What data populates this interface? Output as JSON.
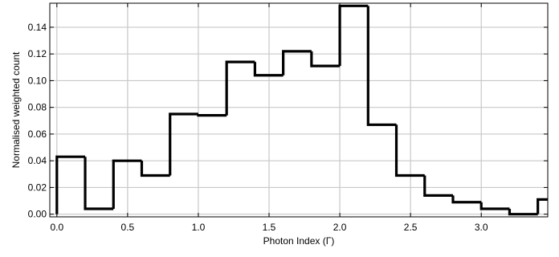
{
  "chart_data": {
    "type": "bar",
    "subtype": "step-histogram",
    "title": "",
    "xlabel": "Photon Index (Γ)",
    "ylabel": "Normalised weighted count",
    "xlim": [
      -0.05,
      3.47
    ],
    "ylim": [
      -0.002,
      0.158
    ],
    "x_ticks": [
      0.0,
      0.5,
      1.0,
      1.5,
      2.0,
      2.5,
      3.0
    ],
    "x_tick_labels": [
      "0.0",
      "0.5",
      "1.0",
      "1.5",
      "2.0",
      "2.5",
      "3.0"
    ],
    "y_ticks": [
      0.0,
      0.02,
      0.04,
      0.06,
      0.08,
      0.1,
      0.12,
      0.14
    ],
    "y_tick_labels": [
      "0.00",
      "0.02",
      "0.04",
      "0.06",
      "0.08",
      "0.10",
      "0.12",
      "0.14"
    ],
    "grid": true,
    "bin_edges": [
      0.0,
      0.2,
      0.4,
      0.6,
      0.8,
      1.0,
      1.2,
      1.4,
      1.6,
      1.8,
      2.0,
      2.2,
      2.4,
      2.6,
      2.8,
      3.0,
      3.2,
      3.4,
      3.6
    ],
    "values": [
      0.043,
      0.004,
      0.04,
      0.029,
      0.075,
      0.074,
      0.114,
      0.104,
      0.122,
      0.111,
      0.156,
      0.067,
      0.029,
      0.014,
      0.009,
      0.004,
      0.0,
      0.011
    ],
    "line_color": "#000000",
    "grid_color": "#c8c8c8"
  }
}
